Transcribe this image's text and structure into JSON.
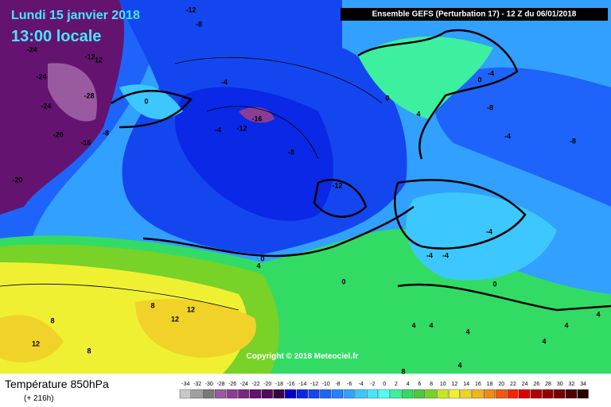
{
  "header": {
    "date": "Lundi 15 janvier 2018",
    "time": "13:00 locale",
    "run": "Ensemble GEFS  (Perturbation 17)  -  12 Z du 06/01/2018"
  },
  "copyright": "Copyright © 2018 Meteociel.fr",
  "footer": {
    "title": "Température 850hPa",
    "lead": "(+ 216h)"
  },
  "map_labels": [
    -12,
    -8,
    -24,
    -12,
    12,
    -24,
    -28,
    -24,
    -20,
    -16,
    -8,
    -20,
    0,
    -4,
    -16,
    -12,
    -4,
    -8,
    -12,
    0,
    4,
    0,
    -4,
    -8,
    -4,
    -8,
    -4,
    -4,
    -4,
    0,
    4,
    0,
    0,
    8,
    12,
    12,
    8,
    12,
    8,
    4,
    4,
    4,
    4,
    4,
    4,
    4,
    8
  ],
  "legend": {
    "ticks": [
      -34,
      -32,
      -30,
      -28,
      -26,
      -24,
      -22,
      -20,
      -18,
      -16,
      -14,
      -12,
      -10,
      -8,
      -6,
      -4,
      -2,
      0,
      2,
      4,
      6,
      8,
      10,
      12,
      14,
      16,
      18,
      20,
      22,
      24,
      26,
      28,
      30,
      32,
      34
    ],
    "colors": [
      "#c8c8c8",
      "#a0a0a0",
      "#787878",
      "#9a5aa0",
      "#8a3c96",
      "#782882",
      "#641470",
      "#500a5a",
      "#3c0046",
      "#0000c8",
      "#0a28e6",
      "#1446f0",
      "#1e64fa",
      "#2882ff",
      "#32a0ff",
      "#3cc8ff",
      "#46e6ff",
      "#50fff0",
      "#3cf0a0",
      "#32dc64",
      "#50c83c",
      "#78d228",
      "#c8e628",
      "#f0f032",
      "#f0d228",
      "#f0b41e",
      "#f08c14",
      "#f05a0a",
      "#f02800",
      "#dc0000",
      "#b40000",
      "#960000",
      "#780000",
      "#500000",
      "#280000"
    ]
  }
}
